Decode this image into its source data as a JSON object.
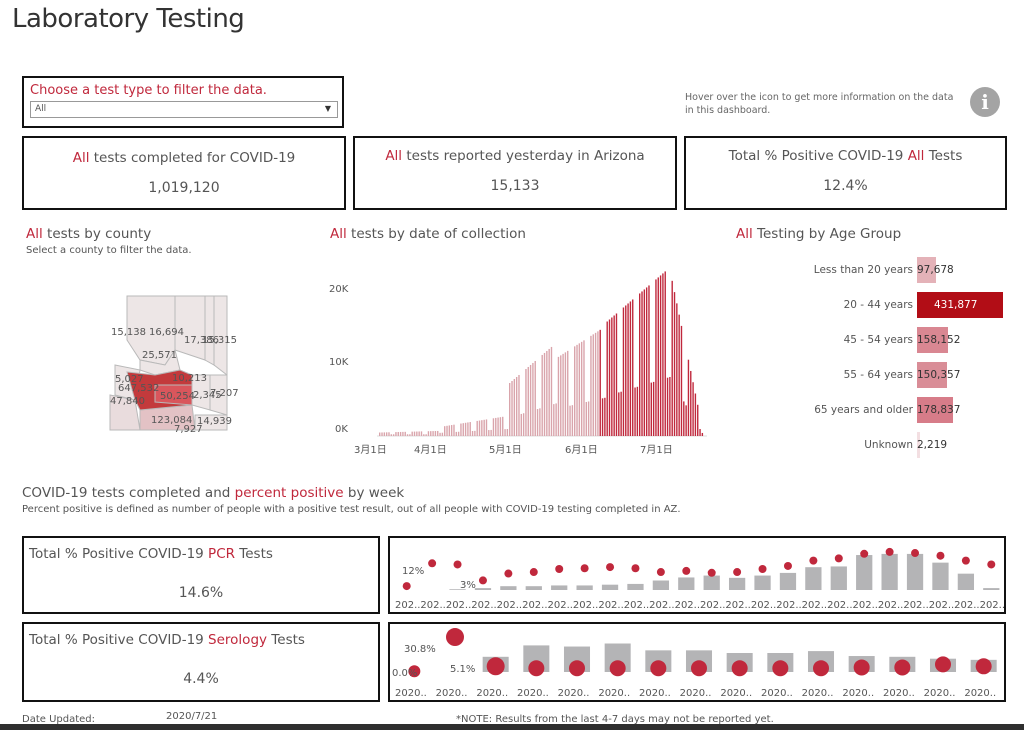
{
  "page": {
    "title": "Laboratory Testing"
  },
  "filter": {
    "label": "Choose a test type to filter the data.",
    "value": "All"
  },
  "info": {
    "text": "Hover over the icon to get more information on the data in this dashboard.",
    "icon": "info-icon",
    "icon_glyph": "i"
  },
  "kpis": [
    {
      "prefix": "All",
      "text": " tests completed for COVID-19",
      "value": "1,019,120"
    },
    {
      "prefix": "All",
      "text": " tests reported yesterday in Arizona",
      "value": "15,133"
    },
    {
      "prefix_text": "Total % Positive COVID-19 ",
      "prefix": "All",
      "text": " Tests",
      "value": "12.4%"
    }
  ],
  "county": {
    "title_prefix": "All",
    "title": " tests by county",
    "subtitle": "Select a county to filter the data.",
    "labels": [
      "15,138",
      "16,694",
      "17,386",
      "15,315",
      "25,571",
      "5,027",
      "647,532",
      "10,213",
      "50,254",
      "2,345",
      "7,207",
      "47,840",
      "123,084",
      "14,939",
      "7,927"
    ]
  },
  "date_chart": {
    "title_prefix": "All",
    "title": " tests by date of collection",
    "yticks": [
      "20K",
      "10K",
      "0K"
    ],
    "xticks": [
      "3月1日",
      "4月1日",
      "5月1日",
      "6月1日",
      "7月1日"
    ]
  },
  "age": {
    "title_prefix": "All",
    "title": " Testing by Age Group",
    "groups": [
      {
        "label": "Less than 20 years",
        "value": "97,678",
        "n": 97678,
        "color": "#e4b2b8"
      },
      {
        "label": "20 - 44 years",
        "value": "431,877",
        "n": 431877,
        "color": "#b20d16"
      },
      {
        "label": "45 - 54 years",
        "value": "158,152",
        "n": 158152,
        "color": "#d98792"
      },
      {
        "label": "55 - 64 years",
        "value": "150,357",
        "n": 150357,
        "color": "#d98d97"
      },
      {
        "label": "65 years and older",
        "value": "178,837",
        "n": 178837,
        "color": "#d77c89"
      },
      {
        "label": "Unknown",
        "value": "2,219",
        "n": 2219,
        "color": "#f3dfe2"
      }
    ]
  },
  "weekly": {
    "title_a": "COVID-19 tests completed and ",
    "title_b": "percent positive",
    "title_c": " by week",
    "subtitle": "Percent positive is defined as number of people with a positive test result, out of all people with COVID-19 testing completed in AZ.",
    "pcr": {
      "kpi_prefix": "Total % Positive COVID-19 ",
      "kpi_type": "PCR",
      "kpi_suffix": " Tests",
      "value": "14.6%",
      "label_a": "12%",
      "label_b": "3%",
      "xlabel": "202..",
      "bars": [
        0,
        0,
        0.02,
        0.05,
        0.1,
        0.1,
        0.12,
        0.12,
        0.14,
        0.16,
        0.25,
        0.33,
        0.38,
        0.32,
        0.38,
        0.45,
        0.6,
        0.62,
        0.92,
        0.95,
        0.95,
        0.72,
        0.43,
        0.05
      ],
      "dots": [
        0.05,
        0.65,
        0.62,
        0.2,
        0.38,
        0.42,
        0.5,
        0.52,
        0.55,
        0.52,
        0.42,
        0.45,
        0.4,
        0.42,
        0.5,
        0.58,
        0.72,
        0.78,
        0.9,
        0.95,
        0.92,
        0.85,
        0.72,
        0.62
      ]
    },
    "serology": {
      "kpi_prefix": "Total % Positive COVID-19 ",
      "kpi_type": "Serology",
      "kpi_suffix": " Tests",
      "value": "4.4%",
      "label_a": "30.8%",
      "label_b": "5.1%",
      "label_c": "0.0%",
      "xlabel": "2020..",
      "bars": [
        0,
        0,
        0.4,
        0.7,
        0.67,
        0.75,
        0.57,
        0.57,
        0.5,
        0.5,
        0.55,
        0.42,
        0.4,
        0.35,
        0.32
      ],
      "dots": [
        0.02,
        0.92,
        0.15,
        0.1,
        0.1,
        0.1,
        0.1,
        0.1,
        0.1,
        0.1,
        0.1,
        0.12,
        0.12,
        0.2,
        0.15
      ],
      "dot_sizes": [
        6,
        9,
        9,
        8,
        8,
        8,
        8,
        8,
        8,
        8,
        8,
        8,
        8,
        8,
        8
      ]
    }
  },
  "footer": {
    "updated_label": "Date Updated:",
    "updated_value": "2020/7/21",
    "note": "*NOTE: Results from the last 4-7 days may not be reported yet."
  },
  "colors": {
    "accent": "#c0283c",
    "bar_gray": "#b4b4b6",
    "dot_red": "#c0283c",
    "date_bar": "#d9a4ab",
    "date_bar_dark": "#c0283c"
  }
}
